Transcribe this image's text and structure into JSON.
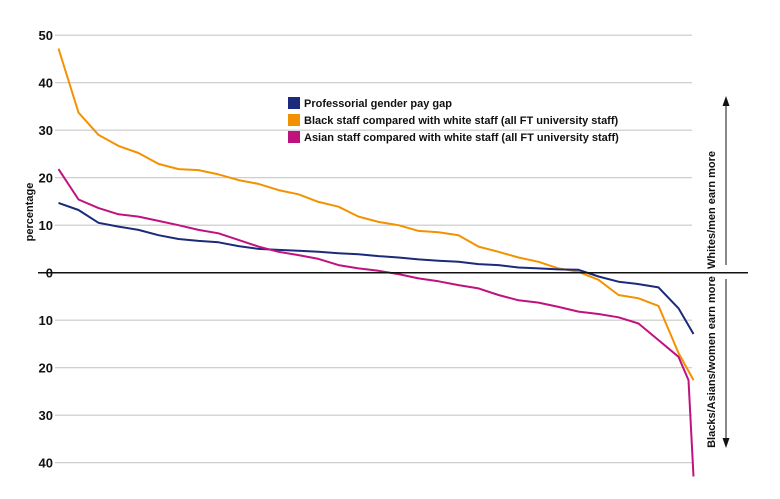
{
  "chart_data": {
    "type": "line",
    "title": "",
    "xlabel": "",
    "ylabel": "percentage",
    "ylim": [
      -45,
      50
    ],
    "yticks": [
      50,
      40,
      30,
      20,
      10,
      0,
      -10,
      -20,
      -30,
      -40
    ],
    "ytick_labels": [
      "50",
      "40",
      "30",
      "20",
      "10",
      "0",
      "10",
      "20",
      "30",
      "40"
    ],
    "grid": true,
    "legend_position": "top-center",
    "annotations": {
      "upper": "Whites/men earn more",
      "lower": "Blacks/Asians/women earn more"
    },
    "series": [
      {
        "name": "Professorial gender pay gap",
        "color": "#1b2a7a",
        "x": [
          0,
          1,
          2,
          3,
          4,
          5,
          6,
          7,
          8,
          9,
          10,
          11,
          12,
          13,
          14,
          15,
          16,
          17,
          18,
          19,
          20,
          21,
          22,
          23,
          24,
          25,
          26,
          27,
          28,
          29,
          30,
          31,
          31.75
        ],
        "values": [
          14.7,
          13.2,
          10.5,
          9.7,
          9.0,
          7.9,
          7.1,
          6.7,
          6.4,
          5.6,
          5.0,
          4.8,
          4.6,
          4.4,
          4.1,
          3.9,
          3.5,
          3.2,
          2.8,
          2.5,
          2.3,
          1.8,
          1.6,
          1.1,
          0.9,
          0.7,
          0.6,
          -0.8,
          -1.9,
          -2.4,
          -3.1,
          -7.5,
          -12.9
        ]
      },
      {
        "name": "Black staff compared with white staff (all FT university staff)",
        "color": "#f39200",
        "x": [
          0,
          1,
          2,
          3,
          4,
          5,
          6,
          7,
          8,
          9,
          10,
          11,
          12,
          13,
          14,
          15,
          16,
          17,
          18,
          19,
          20,
          21,
          22,
          23,
          24,
          25,
          26,
          27,
          28,
          29,
          30,
          31,
          31.75
        ],
        "values": [
          47.2,
          33.7,
          29.0,
          26.7,
          25.2,
          22.9,
          21.8,
          21.6,
          20.7,
          19.5,
          18.7,
          17.4,
          16.5,
          14.9,
          13.9,
          11.8,
          10.7,
          10.0,
          8.8,
          8.5,
          7.9,
          5.5,
          4.4,
          3.2,
          2.3,
          0.9,
          0.2,
          -1.5,
          -4.7,
          -5.4,
          -7.0,
          -16.9,
          -22.6
        ]
      },
      {
        "name": "Asian staff compared with white staff (all FT university staff)",
        "color": "#c0127e",
        "x": [
          0,
          1,
          2,
          3,
          4,
          5,
          6,
          7,
          8,
          9,
          10,
          11,
          12,
          13,
          14,
          15,
          16,
          17,
          18,
          19,
          20,
          21,
          22,
          23,
          24,
          25,
          26,
          27,
          28,
          29,
          30,
          31,
          31.5,
          31.75
        ],
        "values": [
          21.8,
          15.4,
          13.6,
          12.3,
          11.8,
          10.9,
          10.0,
          9.0,
          8.3,
          6.9,
          5.5,
          4.4,
          3.7,
          2.9,
          1.6,
          0.9,
          0.4,
          -0.3,
          -1.2,
          -1.8,
          -2.6,
          -3.3,
          -4.7,
          -5.8,
          -6.3,
          -7.2,
          -8.2,
          -8.7,
          -9.4,
          -10.7,
          -14.2,
          -17.7,
          -22.6,
          -42.9
        ]
      }
    ]
  }
}
